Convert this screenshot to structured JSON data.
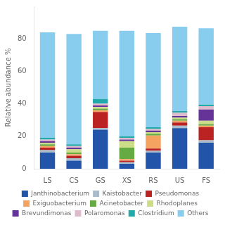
{
  "chart_data": {
    "type": "bar",
    "stacked": true,
    "categories": [
      "LS",
      "CS",
      "GS",
      "XS",
      "RS",
      "US",
      "FS"
    ],
    "series": [
      {
        "name": "Janthinobacterium",
        "color": "#2255aa",
        "values": [
          10,
          5,
          24,
          3,
          10,
          25,
          16
        ]
      },
      {
        "name": "Kaistobacter",
        "color": "#aabbcc",
        "values": [
          1.5,
          1.5,
          1,
          1,
          1,
          1.5,
          1.5
        ]
      },
      {
        "name": "Pseudomonas",
        "color": "#bb2222",
        "values": [
          1.5,
          1.5,
          10,
          1,
          1.5,
          2,
          8
        ]
      },
      {
        "name": "Exiguobacterium",
        "color": "#f4a460",
        "values": [
          1,
          1,
          1,
          1,
          8,
          1,
          1
        ]
      },
      {
        "name": "Acinetobacter",
        "color": "#66aa44",
        "values": [
          1,
          1,
          1,
          7,
          1,
          1,
          1
        ]
      },
      {
        "name": "Rhodoplanes",
        "color": "#ccdd88",
        "values": [
          1,
          2,
          1,
          4,
          1,
          1,
          2
        ]
      },
      {
        "name": "Brevundimonas",
        "color": "#663399",
        "values": [
          1,
          1,
          1,
          1,
          1,
          1,
          7
        ]
      },
      {
        "name": "Polaromonas",
        "color": "#ddbbcc",
        "values": [
          1,
          1,
          1,
          1,
          1,
          2,
          2
        ]
      },
      {
        "name": "Clostridium",
        "color": "#22aaaa",
        "values": [
          1,
          1,
          3,
          1,
          1,
          1,
          1
        ]
      },
      {
        "name": "Others",
        "color": "#88ccee",
        "values": [
          65,
          68,
          42,
          65,
          58,
          52,
          47
        ]
      }
    ],
    "ylabel": "Relative abundance %",
    "ylim": [
      0,
      100
    ],
    "yticks": [
      0,
      20,
      40,
      60,
      80
    ],
    "grid": false,
    "legend": "bottom"
  }
}
